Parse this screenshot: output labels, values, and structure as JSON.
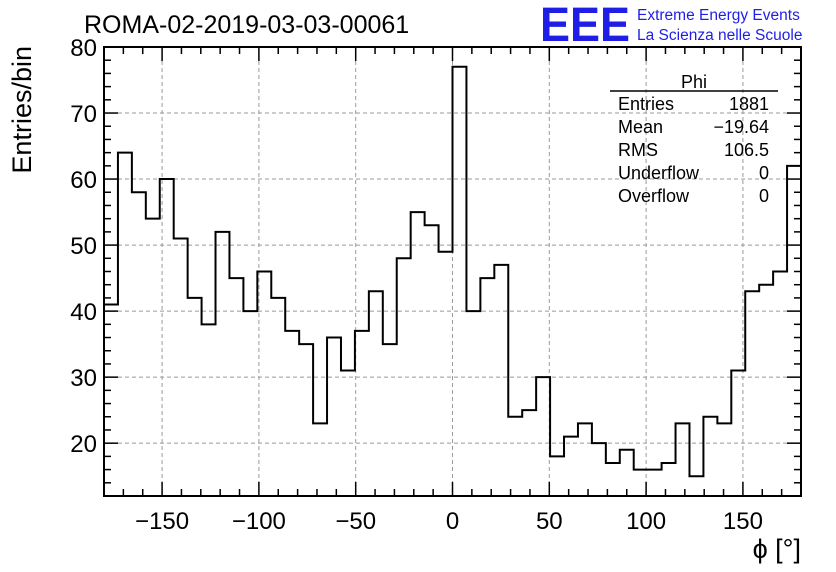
{
  "header": {
    "title": "ROMA-02-2019-03-03-00061",
    "logo_mark": "EEE",
    "logo_line1": "Extreme Energy Events",
    "logo_line2": "La Scienza nelle Scuole",
    "accent_color": "#1e1ee6"
  },
  "stats": {
    "name": "Phi",
    "rows": [
      {
        "label": "Entries",
        "value": "1881"
      },
      {
        "label": "Mean",
        "value": "−19.64"
      },
      {
        "label": "RMS",
        "value": "106.5"
      },
      {
        "label": "Underflow",
        "value": "0"
      },
      {
        "label": "Overflow",
        "value": "0"
      }
    ]
  },
  "chart_data": {
    "type": "bar",
    "style": "step-histogram",
    "title": "ROMA-02-2019-03-03-00061",
    "xlabel": "ϕ [°]",
    "ylabel": "Entries/bin",
    "xlim": [
      -180,
      180
    ],
    "ylim": [
      12,
      80
    ],
    "bin_width": 7.2,
    "values": [
      41,
      64,
      58,
      54,
      60,
      51,
      42,
      38,
      52,
      45,
      40,
      46,
      42,
      37,
      35,
      23,
      36,
      31,
      37,
      43,
      35,
      48,
      55,
      53,
      49,
      77,
      40,
      45,
      47,
      24,
      25,
      30,
      18,
      21,
      23,
      20,
      17,
      19,
      16,
      16,
      17,
      23,
      15,
      24,
      23,
      31,
      43,
      44,
      46,
      62
    ],
    "xticks": [
      -150,
      -100,
      -50,
      0,
      50,
      100,
      150
    ],
    "xtick_labels": [
      "−150",
      "−100",
      "−50",
      "0",
      "50",
      "100",
      "150"
    ],
    "yticks": [
      20,
      30,
      40,
      50,
      60,
      70,
      80
    ],
    "ytick_labels": [
      "20",
      "30",
      "40",
      "50",
      "60",
      "70",
      "80"
    ],
    "grid": true,
    "legend": "stats box top-right"
  }
}
